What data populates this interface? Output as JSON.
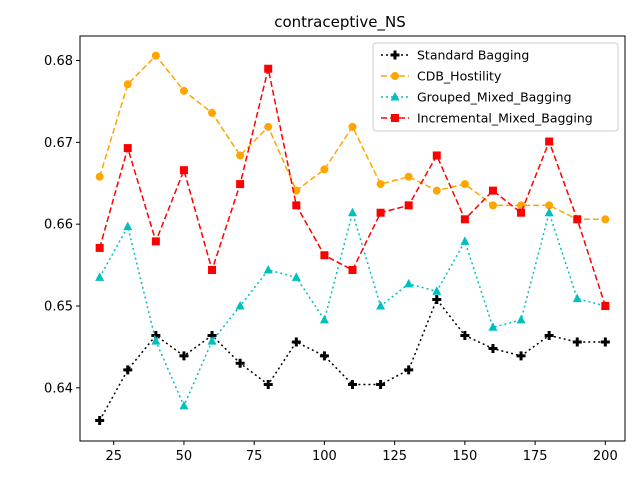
{
  "chart_data": {
    "type": "line",
    "title": "contraceptive_NS",
    "xlabel": "",
    "ylabel": "",
    "x": [
      20,
      30,
      40,
      50,
      60,
      70,
      80,
      90,
      100,
      110,
      120,
      130,
      140,
      150,
      160,
      170,
      180,
      190,
      200
    ],
    "xlim": [
      13,
      207
    ],
    "ylim": [
      0.6335,
      0.683
    ],
    "xticks": [
      25,
      50,
      75,
      100,
      125,
      150,
      175,
      200
    ],
    "yticks": [
      0.64,
      0.65,
      0.66,
      0.67,
      0.68
    ],
    "xtick_labels": [
      "25",
      "50",
      "75",
      "100",
      "125",
      "150",
      "175",
      "200"
    ],
    "ytick_labels": [
      "0.64",
      "0.65",
      "0.66",
      "0.67",
      "0.68"
    ],
    "grid": false,
    "legend_position": "top-right",
    "series": [
      {
        "name": "Standard Bagging",
        "color": "#000000",
        "linestyle": "dotted",
        "marker": "plus",
        "values": [
          0.636,
          0.6422,
          0.6464,
          0.6439,
          0.6464,
          0.643,
          0.6404,
          0.6456,
          0.6439,
          0.6404,
          0.6404,
          0.6422,
          0.6508,
          0.6464,
          0.6448,
          0.6439,
          0.6464,
          0.6456,
          0.6456
        ]
      },
      {
        "name": "CDB_Hostility",
        "color": "#ffa500",
        "linestyle": "dashed",
        "marker": "circle",
        "values": [
          0.6658,
          0.6771,
          0.6806,
          0.6763,
          0.6736,
          0.6684,
          0.6719,
          0.6641,
          0.6667,
          0.6719,
          0.6649,
          0.6658,
          0.6641,
          0.6649,
          0.6623,
          0.6623,
          0.6623,
          0.6606,
          0.6606
        ]
      },
      {
        "name": "Grouped_Mixed_Bagging",
        "color": "#00bfbf",
        "linestyle": "dotted",
        "marker": "triangle",
        "values": [
          0.6535,
          0.6597,
          0.6457,
          0.6378,
          0.6457,
          0.65,
          0.6544,
          0.6535,
          0.6483,
          0.6614,
          0.65,
          0.6527,
          0.6518,
          0.6579,
          0.6474,
          0.6483,
          0.6614,
          0.6509,
          0.65
        ]
      },
      {
        "name": "Incremental_Mixed_Bagging",
        "color": "#ff0000",
        "linestyle": "dashed",
        "marker": "square",
        "values": [
          0.6571,
          0.6693,
          0.6579,
          0.6666,
          0.6544,
          0.6649,
          0.679,
          0.6623,
          0.6562,
          0.6544,
          0.6614,
          0.6623,
          0.6684,
          0.6606,
          0.6641,
          0.6614,
          0.6701,
          0.6606,
          0.65
        ]
      }
    ]
  }
}
